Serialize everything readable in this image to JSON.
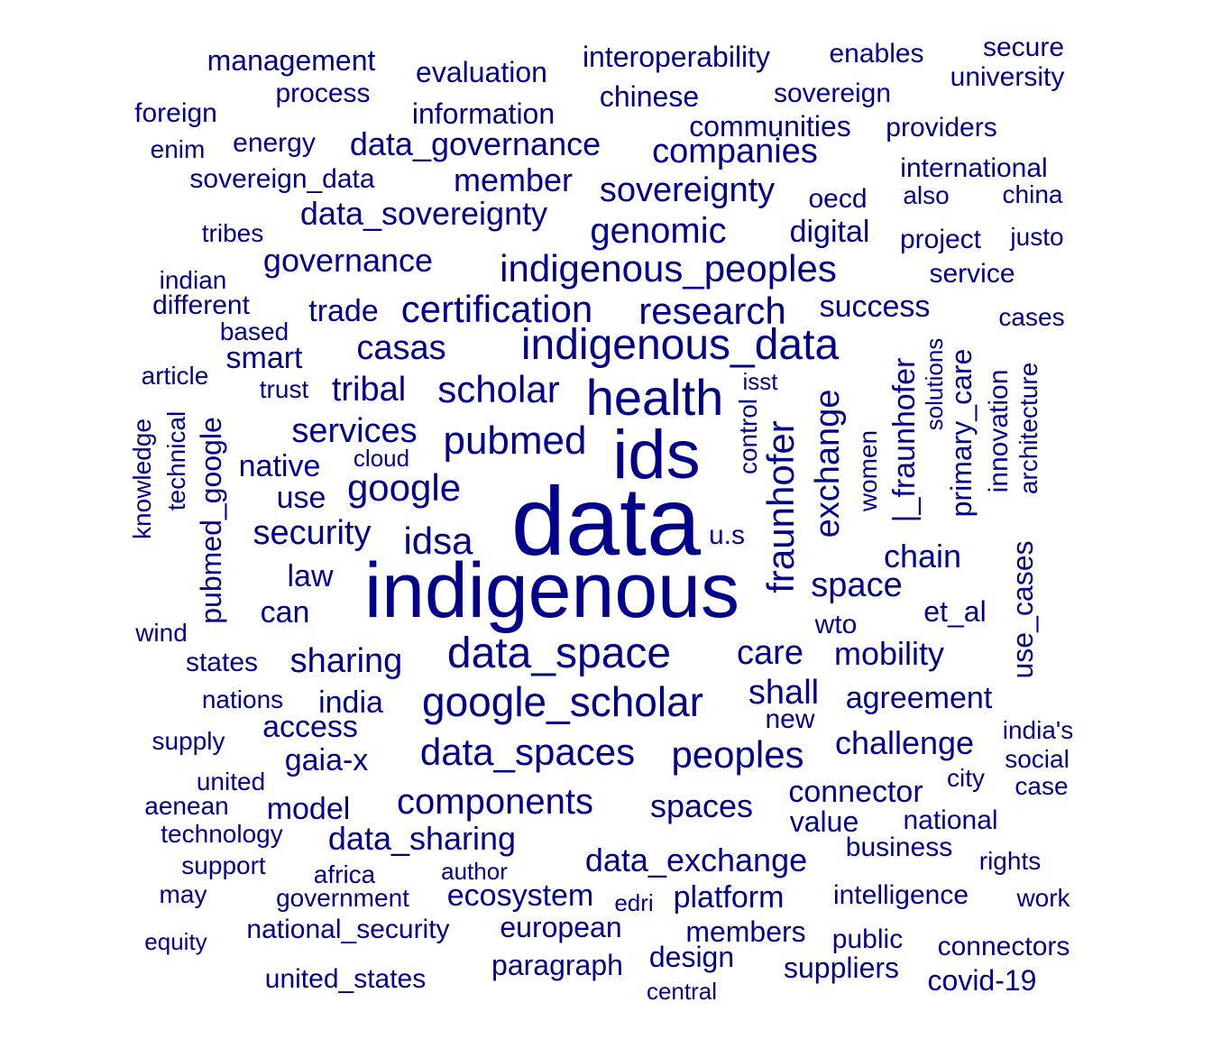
{
  "wordcloud": {
    "color": "#00008b",
    "words": [
      "data",
      "indigenous",
      "ids",
      "health",
      "indigenous_data",
      "data_space",
      "google_scholar",
      "indigenous_peoples",
      "fraunhofer",
      "pubmed",
      "scholar",
      "certification",
      "research",
      "idsa",
      "google",
      "data_spaces",
      "peoples",
      "components",
      "sovereignty",
      "genomic",
      "data_sovereignty",
      "governance",
      "data_governance",
      "companies",
      "member",
      "casas",
      "tribal",
      "services",
      "security",
      "sharing",
      "care",
      "mobility",
      "shall",
      "exchange",
      "space",
      "chain",
      "data_exchange",
      "spaces",
      "connector",
      "data_sharing",
      "challenge",
      "agreement",
      "trade",
      "digital",
      "success",
      "smart",
      "native",
      "use",
      "law",
      "can",
      "india",
      "access",
      "gaia-x",
      "model",
      "platform",
      "ecosystem",
      "european",
      "design",
      "paragraph",
      "members",
      "suppliers",
      "public",
      "connectors",
      "covid-19",
      "intelligence",
      "business",
      "value",
      "national",
      "rights",
      "work",
      "city",
      "case",
      "social",
      "india's",
      "et_al",
      "wto",
      "u.s",
      "new",
      "primary_care",
      "use_cases",
      "innovation",
      "architecture",
      "women",
      "solutions",
      "|_fraunhofer",
      "control",
      "isst",
      "pubmed_google",
      "technical",
      "knowledge",
      "interoperability",
      "evaluation",
      "management",
      "enables",
      "secure",
      "university",
      "sovereign",
      "chinese",
      "process",
      "information",
      "foreign",
      "communities",
      "providers",
      "energy",
      "enim",
      "sovereign_data",
      "international",
      "oecd",
      "also",
      "china",
      "tribes",
      "project",
      "justo",
      "indian",
      "service",
      "different",
      "based",
      "cases",
      "article",
      "trust",
      "cloud",
      "wind",
      "states",
      "nations",
      "supply",
      "united",
      "aenean",
      "technology",
      "support",
      "africa",
      "author",
      "may",
      "government",
      "edri",
      "equity",
      "national_security",
      "united_states",
      "central"
    ]
  }
}
